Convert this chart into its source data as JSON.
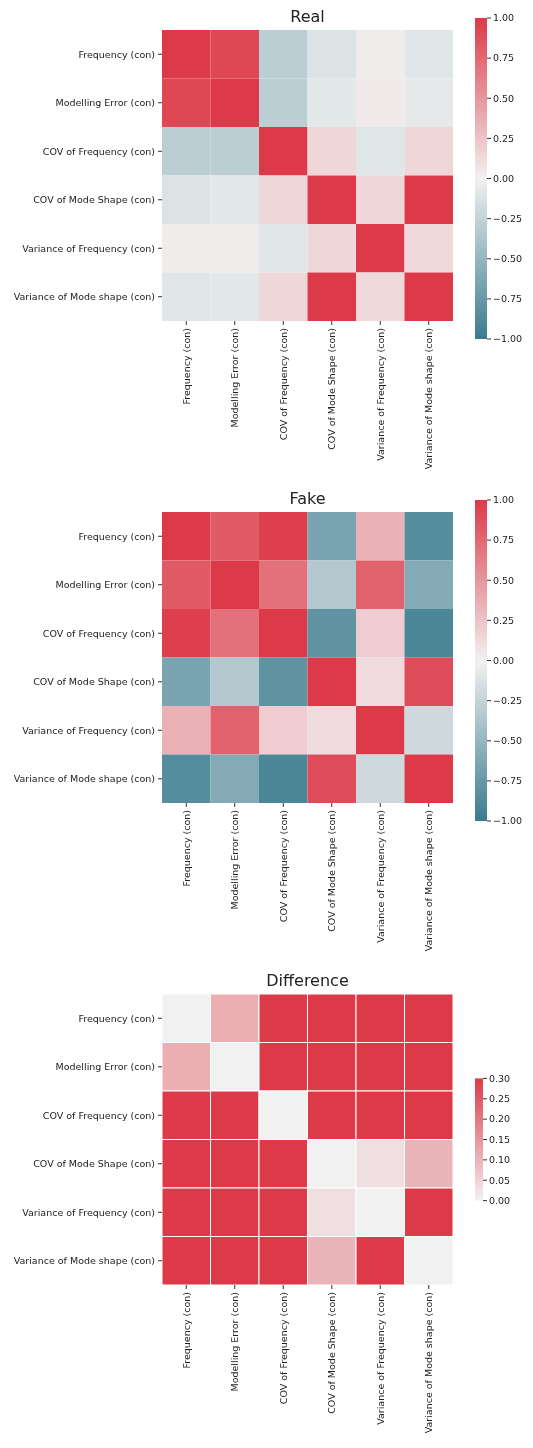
{
  "chart_data": [
    {
      "type": "heatmap",
      "title": "Real",
      "categories": [
        "Frequency (con)",
        "Modelling Error (con)",
        "COV of Frequency (con)",
        "COV of Mode Shape (con)",
        "Variance of Frequency (con)",
        "Variance of Mode shape (con)"
      ],
      "y_categories": [
        "Frequency (con)",
        "Modelling Error (con)",
        "COV of Frequency (con)",
        "COV of Mode Shape (con)",
        "Variance of Frequency (con)",
        "Variance of Mode shape (con)"
      ],
      "cells": [
        [
          1,
          0.93,
          -0.3,
          -0.12,
          0.03,
          -0.1
        ],
        [
          0.93,
          1,
          -0.3,
          -0.08,
          0.04,
          -0.07
        ],
        [
          -0.3,
          -0.3,
          1,
          0.15,
          -0.1,
          0.15
        ],
        [
          -0.12,
          -0.08,
          0.15,
          1,
          0.15,
          1
        ],
        [
          0.03,
          0.03,
          -0.1,
          0.15,
          1,
          0.13
        ],
        [
          -0.1,
          -0.08,
          0.15,
          1,
          0.13,
          1
        ]
      ],
      "clim": [
        -1,
        1
      ],
      "cticks": [
        {
          "value": -1,
          "label": "−1.00"
        },
        {
          "value": -0.75,
          "label": "−0.75"
        },
        {
          "value": -0.5,
          "label": "−0.50"
        },
        {
          "value": -0.25,
          "label": "−0.25"
        },
        {
          "value": 0,
          "label": "0.00"
        },
        {
          "value": 0.25,
          "label": "0.25"
        },
        {
          "value": 0.5,
          "label": "0.50"
        },
        {
          "value": 0.75,
          "label": "0.75"
        },
        {
          "value": 1,
          "label": "1.00"
        }
      ]
    },
    {
      "type": "heatmap",
      "title": "Fake",
      "categories": [
        "Frequency (con)",
        "Modelling Error (con)",
        "COV of Frequency (con)",
        "COV of Mode Shape (con)",
        "Variance of Frequency (con)",
        "Variance of Mode shape (con)"
      ],
      "y_categories": [
        "Frequency (con)",
        "Modelling Error (con)",
        "COV of Frequency (con)",
        "COV of Mode Shape (con)",
        "Variance of Frequency (con)",
        "Variance of Mode shape (con)"
      ],
      "cells": [
        [
          1,
          0.82,
          0.97,
          -0.65,
          0.35,
          -0.85
        ],
        [
          0.82,
          1,
          0.7,
          -0.35,
          0.78,
          -0.6
        ],
        [
          0.97,
          0.7,
          1,
          -0.8,
          0.2,
          -0.9
        ],
        [
          -0.65,
          -0.35,
          -0.8,
          1,
          0.12,
          0.9
        ],
        [
          0.35,
          0.78,
          0.2,
          0.12,
          1,
          -0.2
        ],
        [
          -0.85,
          -0.6,
          -0.9,
          0.9,
          -0.2,
          1
        ]
      ],
      "clim": [
        -1,
        1
      ],
      "cticks": [
        {
          "value": -1,
          "label": "−1.00"
        },
        {
          "value": -0.75,
          "label": "−0.75"
        },
        {
          "value": -0.5,
          "label": "−0.50"
        },
        {
          "value": -0.25,
          "label": "−0.25"
        },
        {
          "value": 0,
          "label": "0.00"
        },
        {
          "value": 0.25,
          "label": "0.25"
        },
        {
          "value": 0.5,
          "label": "0.50"
        },
        {
          "value": 0.75,
          "label": "0.75"
        },
        {
          "value": 1,
          "label": "1.00"
        }
      ]
    },
    {
      "type": "heatmap",
      "title": "Difference",
      "categories": [
        "Frequency (con)",
        "Modelling Error (con)",
        "COV of Frequency (con)",
        "COV of Mode Shape (con)",
        "Variance of Frequency (con)",
        "Variance of Mode shape (con)"
      ],
      "y_categories": [
        "Frequency (con)",
        "Modelling Error (con)",
        "COV of Frequency (con)",
        "COV of Mode Shape (con)",
        "Variance of Frequency (con)",
        "Variance of Mode shape (con)"
      ],
      "cells": [
        [
          0,
          0.11,
          0.3,
          0.3,
          0.3,
          0.3
        ],
        [
          0.11,
          0,
          0.3,
          0.3,
          0.3,
          0.3
        ],
        [
          0.3,
          0.3,
          0,
          0.3,
          0.3,
          0.3
        ],
        [
          0.3,
          0.3,
          0.3,
          0,
          0.03,
          0.1
        ],
        [
          0.3,
          0.3,
          0.3,
          0.03,
          0,
          0.3
        ],
        [
          0.3,
          0.3,
          0.3,
          0.1,
          0.3,
          0
        ]
      ],
      "clim": [
        0,
        0.3
      ],
      "cticks": [
        {
          "value": 0,
          "label": "0.00"
        },
        {
          "value": 0.05,
          "label": "0.05"
        },
        {
          "value": 0.1,
          "label": "0.10"
        },
        {
          "value": 0.15,
          "label": "0.15"
        },
        {
          "value": 0.2,
          "label": "0.20"
        },
        {
          "value": 0.25,
          "label": "0.25"
        },
        {
          "value": 0.3,
          "label": "0.30"
        }
      ]
    }
  ]
}
